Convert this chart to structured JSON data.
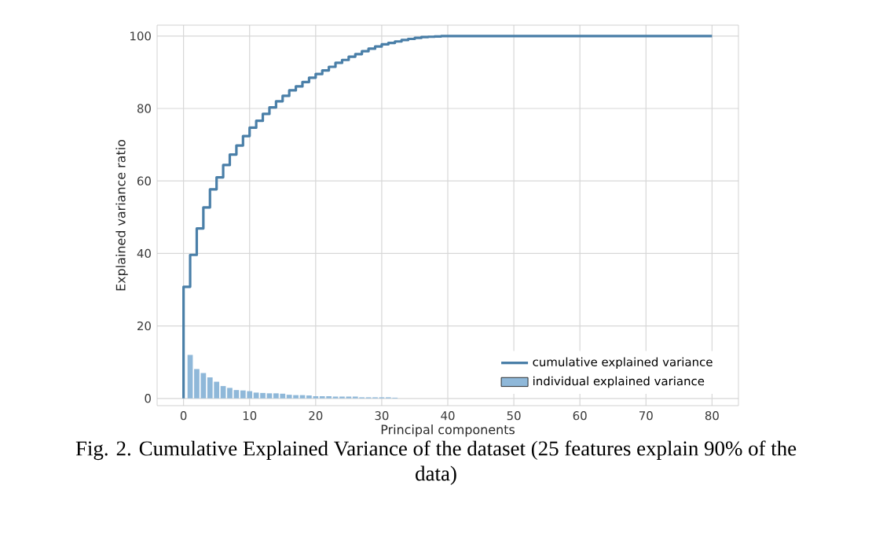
{
  "chart_data": {
    "type": "step",
    "xlabel": "Principal components",
    "ylabel": "Explained variance ratio",
    "xlim": [
      -4,
      84
    ],
    "ylim": [
      -2,
      103
    ],
    "xticks": [
      0,
      10,
      20,
      30,
      40,
      50,
      60,
      70,
      80
    ],
    "yticks": [
      0,
      20,
      40,
      60,
      80,
      100
    ],
    "grid": true,
    "legend": "bottom right",
    "series": [
      {
        "name": "cumulative explained variance",
        "color": "#4a7fa8",
        "x": [
          0,
          0,
          1,
          2,
          3,
          4,
          5,
          6,
          7,
          8,
          9,
          10,
          11,
          12,
          13,
          14,
          15,
          16,
          17,
          18,
          19,
          20,
          21,
          22,
          23,
          24,
          25,
          26,
          27,
          28,
          29,
          30,
          31,
          32,
          33,
          34,
          35,
          36,
          37,
          38,
          39,
          80
        ],
        "values": [
          0,
          30.8,
          39.6,
          46.9,
          52.7,
          57.7,
          61.0,
          64.4,
          67.3,
          69.8,
          72.4,
          74.7,
          76.6,
          78.5,
          80.3,
          82.0,
          83.5,
          85.0,
          86.1,
          87.3,
          88.5,
          89.5,
          90.5,
          91.5,
          92.6,
          93.4,
          94.3,
          95.0,
          95.8,
          96.5,
          97.1,
          97.7,
          98.1,
          98.5,
          98.9,
          99.2,
          99.5,
          99.7,
          99.8,
          99.9,
          100,
          100
        ]
      },
      {
        "name": "individual explained variance",
        "type": "bar",
        "color": "#8fb8d9",
        "x": [
          1,
          2,
          3,
          4,
          5,
          6,
          7,
          8,
          9,
          10,
          11,
          12,
          13,
          14,
          15,
          16,
          17,
          18,
          19,
          20,
          21,
          22,
          23,
          24,
          25,
          26,
          27,
          28,
          29,
          30,
          31,
          32
        ],
        "values": [
          12.0,
          8.1,
          7.0,
          5.8,
          4.6,
          3.4,
          2.9,
          2.3,
          2.2,
          2.0,
          1.6,
          1.5,
          1.4,
          1.4,
          1.3,
          1.0,
          0.9,
          0.9,
          0.8,
          0.6,
          0.6,
          0.6,
          0.5,
          0.5,
          0.5,
          0.5,
          0.3,
          0.3,
          0.3,
          0.3,
          0.3,
          0.2
        ]
      }
    ],
    "annotations": [
      "Fig. 2.   Cumulative Explained Variance of the dataset (25 features explain 90% of the data)"
    ]
  }
}
